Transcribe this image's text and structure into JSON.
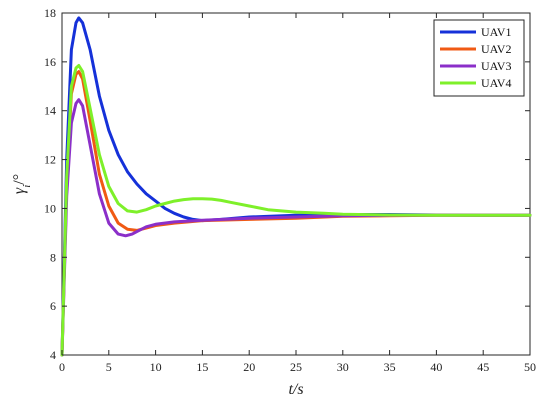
{
  "chart_data": {
    "type": "line",
    "xlabel": "t/s",
    "ylabel": "γi/°",
    "xlim": [
      0,
      50
    ],
    "ylim": [
      4,
      18
    ],
    "xticks": [
      0,
      5,
      10,
      15,
      20,
      25,
      30,
      35,
      40,
      45,
      50
    ],
    "yticks": [
      4,
      6,
      8,
      10,
      12,
      14,
      16,
      18
    ],
    "grid": false,
    "legend_position": "top-right",
    "series": [
      {
        "name": "UAV1",
        "color": "#1531d9",
        "x": [
          0,
          0.5,
          1,
          1.5,
          1.8,
          2.2,
          3,
          4,
          5,
          6,
          7,
          8,
          9,
          10,
          11,
          12,
          13,
          14,
          15,
          17,
          20,
          25,
          30,
          35,
          40,
          45,
          50
        ],
        "y": [
          4,
          12,
          16.5,
          17.6,
          17.8,
          17.6,
          16.5,
          14.6,
          13.2,
          12.2,
          11.5,
          11,
          10.6,
          10.3,
          10.0,
          9.8,
          9.65,
          9.55,
          9.5,
          9.55,
          9.65,
          9.72,
          9.75,
          9.75,
          9.73,
          9.72,
          9.72
        ]
      },
      {
        "name": "UAV2",
        "color": "#f05a14",
        "x": [
          0,
          0.5,
          1,
          1.5,
          1.8,
          2.2,
          3,
          4,
          5,
          6,
          7,
          8,
          9,
          10,
          12,
          15,
          20,
          25,
          30,
          35,
          40,
          45,
          50
        ],
        "y": [
          4,
          11,
          14.7,
          15.5,
          15.6,
          15.3,
          13.6,
          11.4,
          10.1,
          9.4,
          9.15,
          9.1,
          9.2,
          9.3,
          9.4,
          9.5,
          9.55,
          9.6,
          9.68,
          9.7,
          9.72,
          9.72,
          9.72
        ]
      },
      {
        "name": "UAV3",
        "color": "#8b2fc9",
        "x": [
          0,
          0.5,
          1,
          1.5,
          1.8,
          2.2,
          3,
          4,
          5,
          6,
          6.8,
          7.5,
          8,
          9,
          10,
          12,
          15,
          20,
          25,
          30,
          35,
          40,
          45,
          50
        ],
        "y": [
          4,
          10.5,
          13.5,
          14.3,
          14.45,
          14.2,
          12.6,
          10.6,
          9.4,
          8.95,
          8.88,
          8.95,
          9.05,
          9.25,
          9.35,
          9.45,
          9.52,
          9.6,
          9.65,
          9.7,
          9.72,
          9.72,
          9.72,
          9.72
        ]
      },
      {
        "name": "UAV4",
        "color": "#7ef02a",
        "x": [
          0,
          0.5,
          1,
          1.5,
          1.8,
          2.2,
          3,
          4,
          5,
          6,
          7,
          8,
          9,
          10,
          11,
          12,
          13,
          14,
          15,
          16,
          17,
          18,
          20,
          22,
          25,
          28,
          30,
          35,
          40,
          45,
          50
        ],
        "y": [
          4,
          11.3,
          15,
          15.75,
          15.85,
          15.6,
          14.1,
          12.2,
          10.9,
          10.2,
          9.9,
          9.85,
          9.95,
          10.1,
          10.2,
          10.3,
          10.36,
          10.4,
          10.4,
          10.38,
          10.33,
          10.25,
          10.1,
          9.95,
          9.85,
          9.8,
          9.76,
          9.73,
          9.72,
          9.72,
          9.72
        ]
      }
    ]
  }
}
